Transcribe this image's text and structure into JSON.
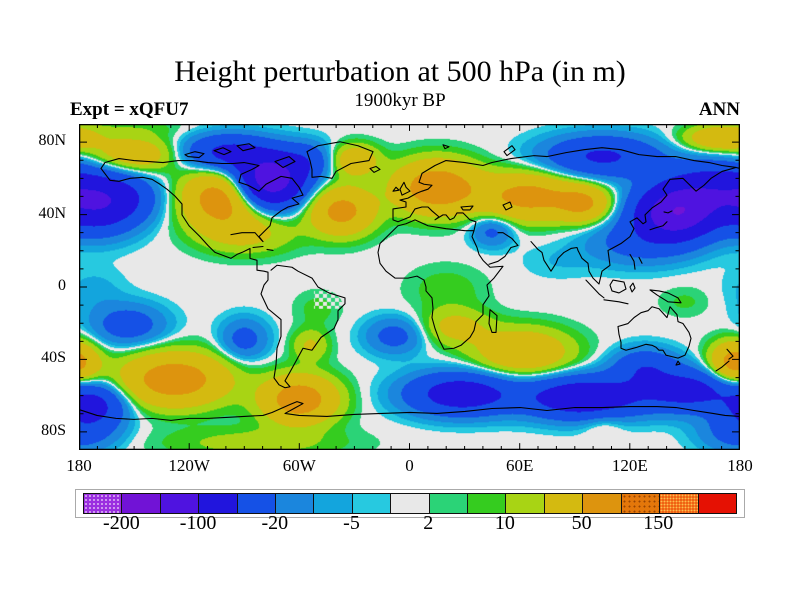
{
  "header": {
    "title": "Height perturbation at 500 hPa (in m)",
    "subtitle": "1900kyr BP",
    "left_label": "Expt = xQFU7",
    "right_label": "ANN"
  },
  "axes": {
    "lat_ticks": [
      {
        "label": "80N",
        "lat": 80
      },
      {
        "label": "40N",
        "lat": 40
      },
      {
        "label": "0",
        "lat": 0
      },
      {
        "label": "40S",
        "lat": -40
      },
      {
        "label": "80S",
        "lat": -80
      }
    ],
    "lon_ticks": [
      {
        "label": "180",
        "lon": -180
      },
      {
        "label": "120W",
        "lon": -120
      },
      {
        "label": "60W",
        "lon": -60
      },
      {
        "label": "0",
        "lon": 0
      },
      {
        "label": "60E",
        "lon": 60
      },
      {
        "label": "120E",
        "lon": 120
      },
      {
        "label": "180",
        "lon": 180
      }
    ]
  },
  "chart_data": {
    "type": "heatmap",
    "title": "Height perturbation at 500 hPa (in m)",
    "subtitle": "1900kyr BP",
    "annotation_left": "Expt = xQFU7",
    "annotation_right": "ANN",
    "units": "m",
    "lon_range": [
      -180,
      180
    ],
    "lat_range": [
      -90,
      90
    ],
    "levels": [
      -200,
      -150,
      -100,
      -50,
      -20,
      -10,
      -5,
      -2,
      2,
      5,
      10,
      20,
      50,
      100,
      150,
      200
    ],
    "band_colors": [
      "#9b2fe0",
      "#7113d6",
      "#4f13e0",
      "#2115dd",
      "#1551e6",
      "#1b86dd",
      "#13a5dd",
      "#27c9e0",
      "#e8e8e8",
      "#2bd377",
      "#35cc1f",
      "#a8d414",
      "#d4ba10",
      "#dd940e",
      "#e4770a",
      "#ee4f07",
      "#e51103"
    ],
    "stipple_bands": [
      0,
      14,
      15
    ],
    "colorbar_labels": [
      "-200",
      "-100",
      "-20",
      "-5",
      "2",
      "10",
      "50",
      "150"
    ],
    "colorbar_labeled_boundaries": [
      1,
      3,
      5,
      7,
      9,
      11,
      13,
      15
    ],
    "field_features": [
      {
        "lon": -170,
        "lat": 46,
        "amp": -85,
        "slon": 15,
        "slat": 11
      },
      {
        "lon": -152,
        "lat": 50,
        "amp": -25,
        "slon": 12,
        "slat": 9
      },
      {
        "lon": -76,
        "lat": 59,
        "amp": -135,
        "slon": 13,
        "slat": 10
      },
      {
        "lon": -100,
        "lat": 74,
        "amp": -60,
        "slon": 16,
        "slat": 7
      },
      {
        "lon": -55,
        "lat": 70,
        "amp": -30,
        "slon": 10,
        "slat": 7
      },
      {
        "lon": 145,
        "lat": 41,
        "amp": -135,
        "slon": 15,
        "slat": 10
      },
      {
        "lon": 165,
        "lat": 55,
        "amp": -60,
        "slon": 18,
        "slat": 10
      },
      {
        "lon": 105,
        "lat": 72,
        "amp": -55,
        "slon": 22,
        "slat": 8
      },
      {
        "lon": 125,
        "lat": 25,
        "amp": -28,
        "slon": 20,
        "slat": 9
      },
      {
        "lon": 45,
        "lat": 31,
        "amp": -26,
        "slon": 8,
        "slat": 6
      },
      {
        "lon": 80,
        "lat": 14,
        "amp": -4.5,
        "slon": 14,
        "slat": 7
      },
      {
        "lon": -172,
        "lat": -2,
        "amp": -7,
        "slon": 12,
        "slat": 9
      },
      {
        "lon": -153,
        "lat": -21,
        "amp": -32,
        "slon": 14,
        "slat": 8
      },
      {
        "lon": -90,
        "lat": -29,
        "amp": -28,
        "slon": 9,
        "slat": 8
      },
      {
        "lon": -8,
        "lat": -27,
        "amp": -28,
        "slon": 11,
        "slat": 7
      },
      {
        "lon": 28,
        "lat": -59,
        "amp": -75,
        "slon": 20,
        "slat": 8
      },
      {
        "lon": 95,
        "lat": -61,
        "amp": -85,
        "slon": 22,
        "slat": 8
      },
      {
        "lon": 152,
        "lat": -57,
        "amp": -65,
        "slon": 18,
        "slat": 8
      },
      {
        "lon": 128,
        "lat": -44,
        "amp": -40,
        "slon": 12,
        "slat": 7
      },
      {
        "lon": -172,
        "lat": -65,
        "amp": -60,
        "slon": 12,
        "slat": 8
      },
      {
        "lon": 180,
        "lat": -80,
        "amp": -30,
        "slon": 15,
        "slat": 8
      },
      {
        "lon": -103,
        "lat": 49,
        "amp": 70,
        "slon": 14,
        "slat": 11
      },
      {
        "lon": -150,
        "lat": 73,
        "amp": 38,
        "slon": 16,
        "slat": 7
      },
      {
        "lon": -88,
        "lat": 30,
        "amp": 25,
        "slon": 18,
        "slat": 8
      },
      {
        "lon": -37,
        "lat": 42,
        "amp": 62,
        "slon": 12,
        "slat": 9
      },
      {
        "lon": -30,
        "lat": 70,
        "amp": 40,
        "slon": 9,
        "slat": 6
      },
      {
        "lon": 15,
        "lat": 55,
        "amp": 75,
        "slon": 16,
        "slat": 10
      },
      {
        "lon": 65,
        "lat": 50,
        "amp": 62,
        "slon": 18,
        "slat": 9
      },
      {
        "lon": 95,
        "lat": 46,
        "amp": 50,
        "slon": 10,
        "slat": 7
      },
      {
        "lon": 170,
        "lat": 82,
        "amp": 45,
        "slon": 14,
        "slat": 5
      },
      {
        "lon": 62,
        "lat": -36,
        "amp": 45,
        "slon": 18,
        "slat": 9
      },
      {
        "lon": 25,
        "lat": -22,
        "amp": 26,
        "slon": 13,
        "slat": 7
      },
      {
        "lon": -128,
        "lat": -51,
        "amp": 72,
        "slon": 20,
        "slat": 10
      },
      {
        "lon": -60,
        "lat": -62,
        "amp": 72,
        "slon": 14,
        "slat": 9
      },
      {
        "lon": 177,
        "lat": -42,
        "amp": 68,
        "slon": 9,
        "slat": 8
      },
      {
        "lon": -54,
        "lat": -32,
        "amp": 22,
        "slon": 7,
        "slat": 6
      },
      {
        "lon": -85,
        "lat": -86,
        "amp": 14,
        "slon": 35,
        "slat": 6
      },
      {
        "lon": 20,
        "lat": -1,
        "amp": 8,
        "slon": 15,
        "slat": 9
      },
      {
        "lon": -50,
        "lat": -12,
        "amp": 7,
        "slon": 9,
        "slat": 7
      },
      {
        "lon": 150,
        "lat": -8,
        "amp": 6,
        "slon": 10,
        "slat": 6
      },
      {
        "lon": -150,
        "lat": 88,
        "amp": 6,
        "slon": 22,
        "slat": 4
      },
      {
        "lon": 105,
        "lat": -75,
        "amp": 10,
        "slon": 8,
        "slat": 5
      }
    ],
    "dither_patches": [
      {
        "lon": [
          -38,
          -5
        ],
        "lat": [
          -9,
          4
        ]
      },
      {
        "lon": [
          -52,
          -36
        ],
        "lat": [
          -12,
          -2
        ]
      },
      {
        "lon": [
          112,
          132
        ],
        "lat": [
          -13,
          -5
        ]
      },
      {
        "lon": [
          55,
          72
        ],
        "lat": [
          -10,
          -2
        ]
      }
    ]
  },
  "map": {
    "coastlines": [
      "M22,45 31,57 40,58 51,55 64,54 73,56 81,61 88,66 96,73 103,81 103,92 110,103 121,114 129,123 136,130 152,136 158,132 163,130 171,126 171,136 178,138 178,148 185,149 189,150 189,158 185,163 182,172 189,187 202,198 202,215 198,227 197,244 195,257 200,264 206,267 211,266 206,260 211,251 217,240 224,227 233,229 242,216 255,207 259,198 259,189 266,182 266,176 250,171 239,165 233,156 219,149 213,145 198,143 192,148",
      "M152,112 163,110 176,110 182,117 184,119 180,114 191,103 193,95 202,88 209,84 220,81 213,75 224,72 220,64 213,55 202,53 187,61 180,68 169,62 160,59 162,51 173,46 180,42 165,39 154,40 143,40 129,39 114,37 99,37 84,39 70,38 55,37 40,35 26,39 22,45",
      "M233,54 242,53 253,55 257,48 272,40 290,37 294,28 279,22 261,18 239,22 228,28 231,37 233,46 Z",
      "M367,37 386,39 404,42 413,39 432,35 455,32 468,33 487,29 505,26 523,24 542,26 560,31 578,33 597,33 615,37 630,39 643,42 657,44 661,45",
      "M367,37 356,42 343,50 340,59 345,61 353,62 349,66 343,68 338,70 329,75 321,77 327,79 327,84 314,86 314,97 319,99 331,94 336,86 343,84 349,84 353,88 360,94 356,97 364,92 367,92 371,97 375,95 378,90 384,90 391,97 397,99 395,108 389,108 386,108 367,106 349,103 336,97 327,101 319,103 312,110 301,121 299,130 301,141 307,149 316,156 329,156 338,154 345,158 347,165 347,169 353,176 354,187 353,196 356,207 360,218 365,228 375,227 382,224 391,216 395,209 397,200 404,193 404,183 410,174 408,163 415,156 424,144 411,145 404,138 400,132 398,125 393,114 395,108",
      "M410,142 419,139 426,134 432,125 439,123 433,116 424,110 419,110",
      "M452,119 459,127 463,130 465,138 472,149 477,141 479,136 485,130 492,126 498,125 499,128 503,136 509,141 510,149 514,156 520,162 523,149 531,143 529,128 531,127 542,121 551,114 555,106 551,99 558,95 564,101 567,99 566,92 573,85 582,79 588,72 584,66 591,56 604,55 617,68 625,62 632,55 643,48 657,44",
      "M323,72 321,66 325,59 327,64 331,68 323,72 Z M314,68 317,64 320,67 Z M291,45 297,43 301,46 295,49 Z",
      "M588,99 584,103 577,105 571,107 M593,88 589,90 585,89",
      "M507,158 520,172 525,176 M525,178 540,180 549,182 M531,163 534,158 545,160 547,167 540,171 533,169 Z M551,165 554,161 556,166 553,170 Z M571,168 580,169 589,171 599,176 602,181 589,180 578,173 571,168 Z M551,132 555,139 556,147 M560,135 563,141",
      "M539,205 540,213 542,221 542,227 547,229 558,226 567,223 573,224 577,226 580,229 584,229 587,234 595,236 599,237 606,234 610,225 612,217 610,211 604,202 599,200 598,193 591,185 588,196 580,187 573,185 569,189 562,191 555,196 549,202 539,205 Z M599,240 601,243 597,244 Z M648,228 654,235 650,238 M650,240 643,246 637,250",
      "M0,289 18,295 37,298 55,299 73,298 92,300 110,298 129,298 147,297 165,296 184,295 193,292 211,284 218,281 224,283 215,288 206,293 220,295 248,296 275,294 303,293 331,292 358,293 386,291 413,288 441,287 468,290 496,287 523,287 551,286 578,286 597,287 615,290 634,293 646,295 661,296",
      "M411,188 418,194 417,211 413,211 410,202 Z M424,82 431,79 433,84 427,87 Z M382,84 394,83 391,87 384,87 Z M106,31 116,28 125,30 120,34 109,33 Z M135,27 144,24 152,28 145,31 Z M158,22 170,20 176,24 164,27 Z M196,38 210,33 216,38 204,44 Z M425,28 433,22 436,26 428,32 Z M364,21 370,23 366,25 Z M184,124 174,125 M188,127 194,128"
    ]
  }
}
